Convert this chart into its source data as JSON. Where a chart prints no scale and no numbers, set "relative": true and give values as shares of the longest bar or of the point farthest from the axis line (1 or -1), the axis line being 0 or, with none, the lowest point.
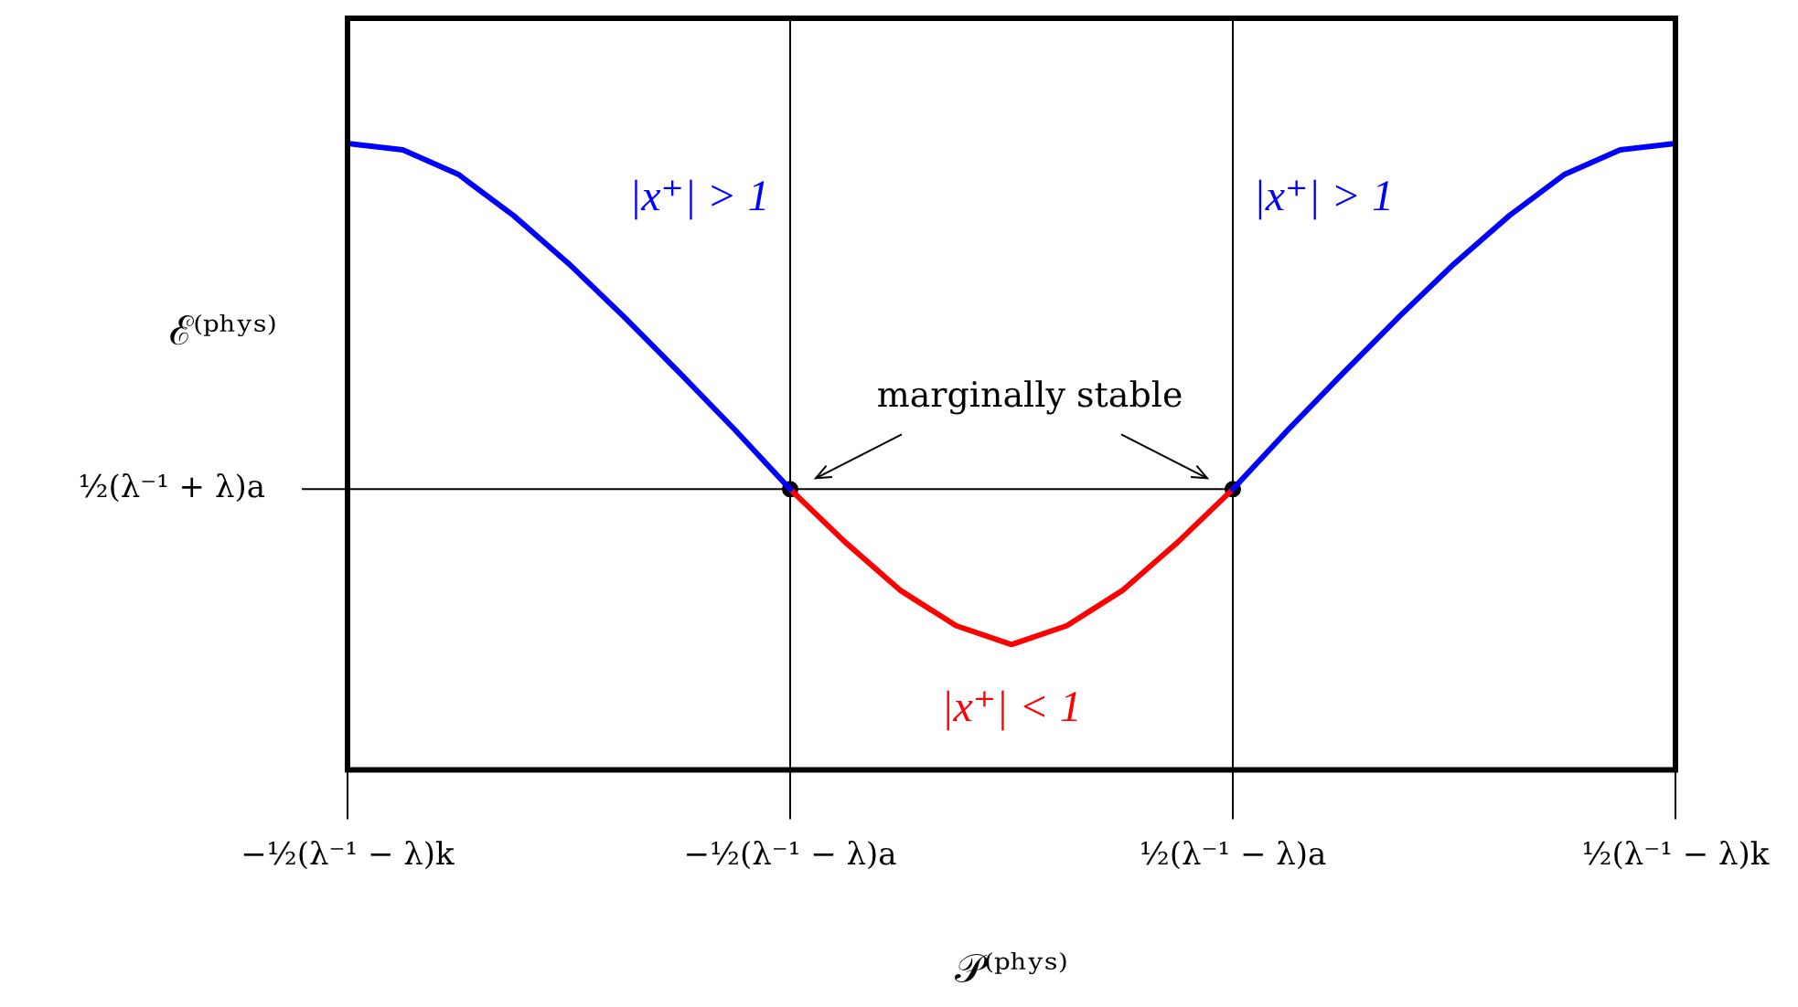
{
  "chart_data": {
    "type": "line",
    "relative": true,
    "xlabel": "𝒫⁽ᵖʰʸˢ⁾",
    "ylabel": "ℰ⁽ᵖʰʸˢ⁾",
    "categories": [
      "−½(λ⁻¹ − λ)k",
      null,
      null,
      null,
      null,
      null,
      null,
      null,
      "−½(λ⁻¹ − λ)a",
      null,
      null,
      null,
      null,
      null,
      null,
      null,
      "½(λ⁻¹ − λ)a",
      null,
      null,
      null,
      null,
      null,
      null,
      null,
      "½(λ⁻¹ − λ)k"
    ],
    "legend": false,
    "grid": false,
    "marker": "none",
    "series": [
      {
        "color": "#0000ff",
        "values": [
          1,
          0.99,
          0.951,
          0.885,
          0.808,
          0.723,
          0.634,
          0.543,
          0.448,
          null,
          null,
          null,
          null,
          null,
          null,
          null,
          0.448,
          0.543,
          0.634,
          0.723,
          0.808,
          0.885,
          0.951,
          0.99,
          1
        ]
      },
      {
        "color": "#ff0000",
        "values": [
          null,
          null,
          null,
          null,
          null,
          null,
          null,
          null,
          0.448,
          0.363,
          0.286,
          0.23,
          0.2,
          0.23,
          0.286,
          0.363,
          0.448,
          null,
          null,
          null,
          null,
          null,
          null,
          null,
          null
        ]
      },
      {
        "type": "scatter",
        "marker": "circle",
        "color": "#000000",
        "values": [
          null,
          null,
          null,
          null,
          null,
          null,
          null,
          null,
          0.448,
          null,
          null,
          null,
          null,
          null,
          null,
          null,
          0.448,
          null,
          null,
          null,
          null,
          null,
          null,
          null,
          null
        ]
      }
    ],
    "ref_lines": [
      {
        "axis": "y",
        "value": 0.448,
        "label": "½(λ⁻¹ + λ)a"
      },
      {
        "axis": "x",
        "value": "−½(λ⁻¹ − λ)a"
      },
      {
        "axis": "x",
        "value": "½(λ⁻¹ − λ)a"
      }
    ],
    "annotations": [
      "|x⁺| > 1",
      "|x⁺| > 1",
      "|x⁺| < 1",
      "marginally stable"
    ]
  }
}
